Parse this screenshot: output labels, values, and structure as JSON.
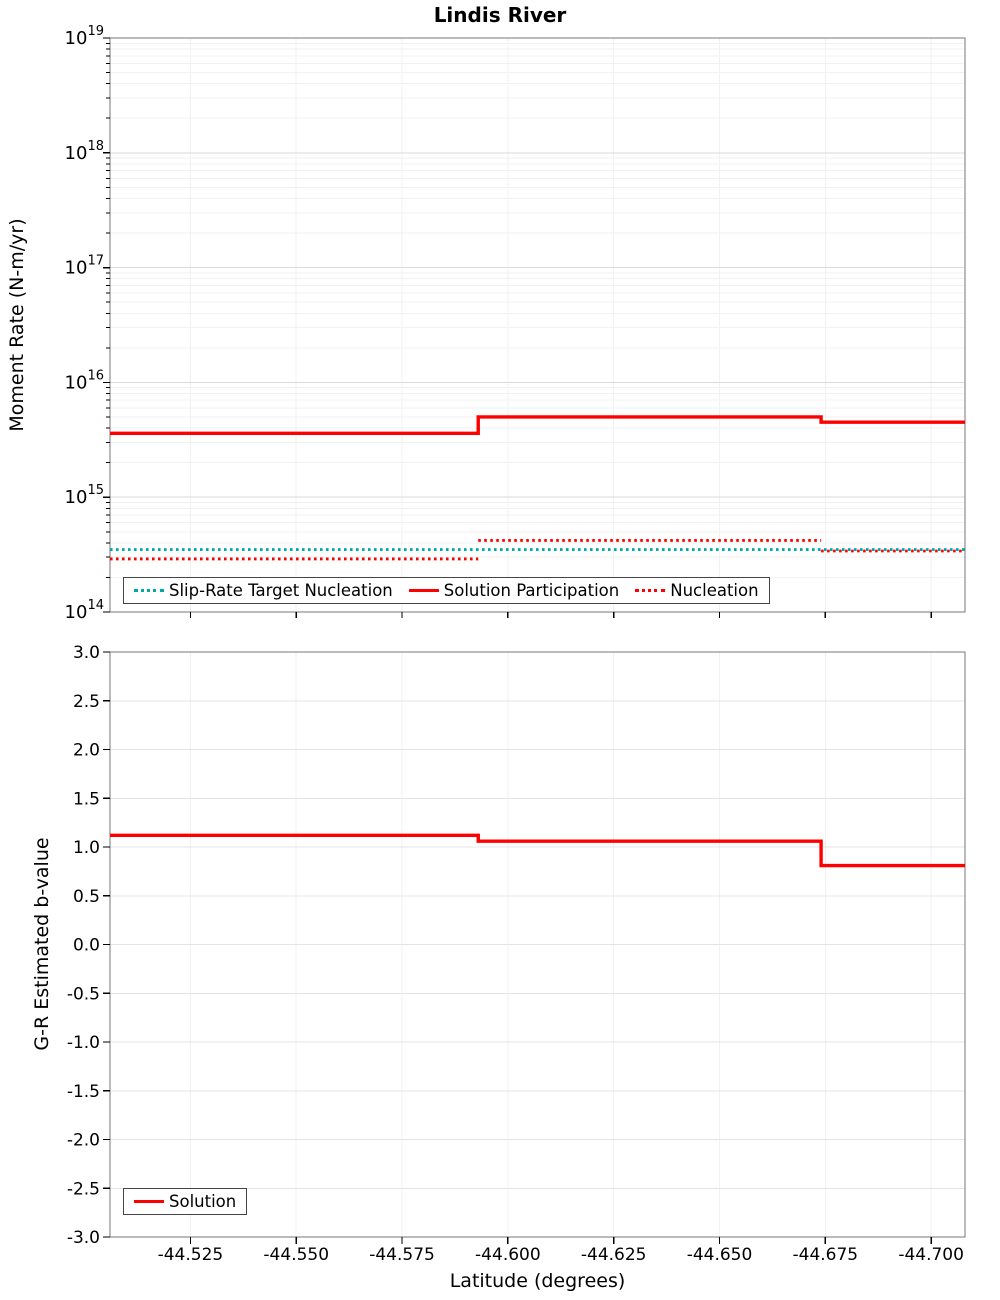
{
  "title": "Lindis River",
  "chart_data": [
    {
      "type": "line",
      "panel": "moment-rate",
      "title": "Lindis River",
      "ylabel": "Moment Rate (N-m/yr)",
      "y_scale": "log",
      "ylim_exponents": [
        14,
        19
      ],
      "y_tick_base": "10",
      "y_tick_exponents": [
        14,
        15,
        16,
        17,
        18,
        19
      ],
      "xlim": [
        -44.506,
        -44.708
      ],
      "grid": true,
      "legend_position": "bottom-left-inside",
      "series": [
        {
          "name": "Slip-Rate Target Nucleation",
          "color": "#00A9A9",
          "style": "dotted",
          "segments": [
            {
              "x0": -44.506,
              "x1": -44.708,
              "y": 350000000000000.0
            }
          ]
        },
        {
          "name": "Solution Participation",
          "color": "#FF0000",
          "style": "solid",
          "segments": [
            {
              "x0": -44.506,
              "x1": -44.593,
              "y": 3600000000000000.0
            },
            {
              "x0": -44.593,
              "x1": -44.674,
              "y": 5000000000000000.0
            },
            {
              "x0": -44.674,
              "x1": -44.708,
              "y": 4500000000000000.0
            }
          ]
        },
        {
          "name": "Nucleation",
          "color": "#FF0000",
          "style": "dotted",
          "segments": [
            {
              "x0": -44.506,
              "x1": -44.593,
              "y": 290000000000000.0
            },
            {
              "x0": -44.593,
              "x1": -44.674,
              "y": 420000000000000.0
            },
            {
              "x0": -44.674,
              "x1": -44.708,
              "y": 340000000000000.0
            }
          ]
        }
      ]
    },
    {
      "type": "line",
      "panel": "b-value",
      "ylabel": "G-R Estimated b-value",
      "xlabel": "Latitude (degrees)",
      "y_scale": "linear",
      "ylim": [
        -3.0,
        3.0
      ],
      "y_ticks": [
        3.0,
        2.5,
        2.0,
        1.5,
        1.0,
        0.5,
        0.0,
        -0.5,
        -1.0,
        -1.5,
        -2.0,
        -2.5,
        -3.0
      ],
      "y_tick_labels": [
        "3.0",
        "2.5",
        "2.0",
        "1.5",
        "1.0",
        "0.5",
        "0.0",
        "-0.5",
        "-1.0",
        "-1.5",
        "-2.0",
        "-2.5",
        "-3.0"
      ],
      "xlim": [
        -44.506,
        -44.708
      ],
      "x_ticks": [
        -44.525,
        -44.55,
        -44.575,
        -44.6,
        -44.625,
        -44.65,
        -44.675,
        -44.7
      ],
      "x_tick_labels": [
        "-44.525",
        "-44.550",
        "-44.575",
        "-44.600",
        "-44.625",
        "-44.650",
        "-44.675",
        "-44.700"
      ],
      "grid": true,
      "legend_position": "bottom-left-inside",
      "series": [
        {
          "name": "Solution",
          "color": "#FF0000",
          "style": "solid",
          "segments": [
            {
              "x0": -44.506,
              "x1": -44.593,
              "y": 1.12
            },
            {
              "x0": -44.593,
              "x1": -44.674,
              "y": 1.06
            },
            {
              "x0": -44.674,
              "x1": -44.708,
              "y": 0.81
            }
          ]
        }
      ]
    }
  ]
}
